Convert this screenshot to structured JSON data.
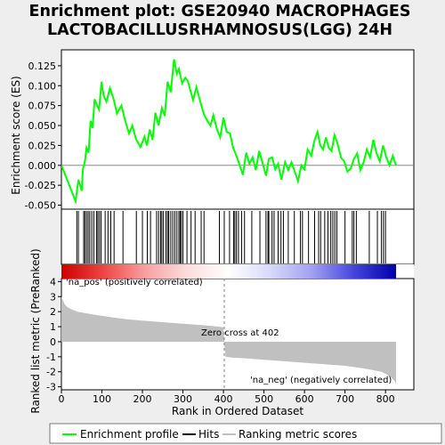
{
  "title_line1": "Enrichment plot: GSE20940 MACROPHAGES",
  "title_line2": "LACTOBACILLUSRHAMNOSUS(LGG) 24H",
  "legend": {
    "profile": "Enrichment profile",
    "hits": "Hits",
    "ranking": "Ranking metric scores"
  },
  "colors": {
    "profile": "#00ff00",
    "hits": "#000000",
    "ranking": "#c0c0c0",
    "pos_label": "#cc0000",
    "neg_label": "#0000cc"
  },
  "labels": {
    "pos": "'na_pos' (positively correlated)",
    "neg": "'na_neg' (negatively correlated)",
    "zero_cross": "Zero cross at 402"
  },
  "chart_data": [
    {
      "type": "line",
      "name": "enrichment-score-panel",
      "ylabel": "Enrichment score (ES)",
      "xlim": [
        0,
        870
      ],
      "ylim": [
        -0.055,
        0.145
      ],
      "yticks": [
        -0.05,
        -0.025,
        0.0,
        0.025,
        0.05,
        0.075,
        0.1,
        0.125
      ],
      "ytick_labels": [
        "-0.050",
        "-0.025",
        "0.000",
        "0.025",
        "0.050",
        "0.075",
        "0.100",
        "0.125"
      ],
      "series": [
        {
          "x": [
            0,
            35,
            42,
            50,
            53,
            58,
            62,
            67,
            72,
            77,
            82,
            88,
            93,
            99,
            104,
            111,
            120,
            129,
            137,
            148,
            158,
            167,
            175,
            184,
            195,
            205,
            211,
            218,
            225,
            232,
            240,
            248,
            255,
            262,
            270,
            278,
            285,
            290,
            298,
            306,
            312,
            318,
            325,
            333,
            340,
            345,
            352,
            360,
            368,
            375,
            384,
            392,
            400,
            408,
            416,
            424,
            432,
            440,
            448,
            456,
            464,
            472,
            480,
            488,
            496,
            505,
            512,
            520,
            528,
            535,
            543,
            552,
            560,
            568,
            576,
            584,
            592,
            600,
            608,
            617,
            624,
            632,
            639,
            646,
            653,
            660,
            667,
            674,
            681,
            690,
            698,
            706,
            714,
            722,
            730,
            738,
            746,
            754,
            762,
            770,
            778,
            786,
            794,
            802,
            810,
            818,
            826
          ],
          "y": [
            0.0,
            -0.045,
            -0.018,
            -0.032,
            -0.005,
            0.005,
            0.022,
            0.016,
            0.056,
            0.047,
            0.083,
            0.075,
            0.07,
            0.105,
            0.088,
            0.08,
            0.097,
            0.083,
            0.065,
            0.075,
            0.055,
            0.04,
            0.05,
            0.033,
            0.023,
            0.036,
            0.025,
            0.045,
            0.032,
            0.066,
            0.05,
            0.072,
            0.062,
            0.105,
            0.092,
            0.133,
            0.115,
            0.121,
            0.103,
            0.11,
            0.106,
            0.095,
            0.082,
            0.098,
            0.085,
            0.076,
            0.064,
            0.056,
            0.05,
            0.063,
            0.045,
            0.035,
            0.06,
            0.042,
            0.04,
            0.022,
            0.012,
            0.0,
            -0.012,
            0.016,
            0.002,
            0.01,
            -0.006,
            0.018,
            0.004,
            -0.013,
            0.008,
            0.01,
            -0.005,
            0.002,
            -0.018,
            0.004,
            -0.006,
            0.004,
            -0.008,
            -0.02,
            0.0,
            -0.005,
            0.02,
            0.012,
            0.03,
            0.042,
            0.025,
            0.02,
            0.035,
            0.022,
            0.018,
            0.038,
            0.028,
            0.01,
            0.005,
            -0.008,
            -0.004,
            0.008,
            0.015,
            -0.006,
            0.004,
            0.02,
            0.01,
            0.032,
            0.015,
            0.005,
            0.025,
            0.01,
            0.0,
            0.012,
            0.0
          ]
        }
      ]
    },
    {
      "type": "hits",
      "name": "hits-panel",
      "xlim": [
        0,
        870
      ],
      "hit_positions": [
        38,
        42,
        55,
        58,
        62,
        66,
        70,
        75,
        80,
        87,
        90,
        94,
        98,
        108,
        115,
        122,
        130,
        152,
        185,
        200,
        212,
        220,
        235,
        240,
        245,
        248,
        252,
        258,
        262,
        265,
        270,
        275,
        280,
        285,
        290,
        293,
        296,
        300,
        310,
        320,
        330,
        345,
        352,
        390,
        402,
        415,
        425,
        428,
        432,
        437,
        445,
        452,
        470,
        490,
        505,
        510,
        512,
        520,
        525,
        535,
        542,
        548,
        560,
        575,
        590,
        595,
        610,
        625,
        635,
        640,
        650,
        658,
        665,
        670,
        675,
        680,
        700,
        718,
        722,
        728,
        760,
        780,
        790,
        795,
        800
      ]
    },
    {
      "type": "heatmap",
      "name": "rank-colorbar",
      "xlim": [
        0,
        870
      ],
      "gradient": [
        "#cc0000",
        "#ee4444",
        "#f7a0a0",
        "#fcdcdc",
        "#ffffff",
        "#d8d8fb",
        "#a0a0f0",
        "#4444dd",
        "#0000aa"
      ]
    },
    {
      "type": "area",
      "name": "ranked-list-metric-panel",
      "xlabel": "Rank in Ordered Dataset",
      "ylabel": "Ranked list metric (PreRanked)",
      "xlim": [
        0,
        870
      ],
      "ylim": [
        -3.2,
        4.2
      ],
      "xticks": [
        0,
        100,
        200,
        300,
        400,
        500,
        600,
        700,
        800
      ],
      "xtick_labels": [
        "0",
        "100",
        "200",
        "300",
        "400",
        "500",
        "600",
        "700",
        "800"
      ],
      "yticks": [
        -3,
        -2,
        -1,
        0,
        1,
        2,
        3,
        4
      ],
      "ytick_labels": [
        "-3",
        "-2",
        "-1",
        "0",
        "1",
        "2",
        "3",
        "4"
      ],
      "zero_cross": 402,
      "x": [
        0,
        3,
        8,
        15,
        25,
        40,
        60,
        80,
        100,
        130,
        160,
        200,
        250,
        300,
        350,
        390,
        400,
        402,
        405,
        420,
        450,
        500,
        550,
        600,
        650,
        700,
        740,
        770,
        790,
        805,
        815,
        822,
        826
      ],
      "values": [
        3.0,
        2.8,
        2.5,
        2.3,
        2.15,
        2.0,
        1.9,
        1.8,
        1.72,
        1.6,
        1.5,
        1.4,
        1.3,
        1.2,
        1.1,
        1.0,
        0.95,
        0.0,
        -1.0,
        -1.05,
        -1.1,
        -1.2,
        -1.3,
        -1.4,
        -1.5,
        -1.6,
        -1.75,
        -1.9,
        -2.0,
        -2.2,
        -2.4,
        -2.6,
        -2.8
      ]
    }
  ]
}
